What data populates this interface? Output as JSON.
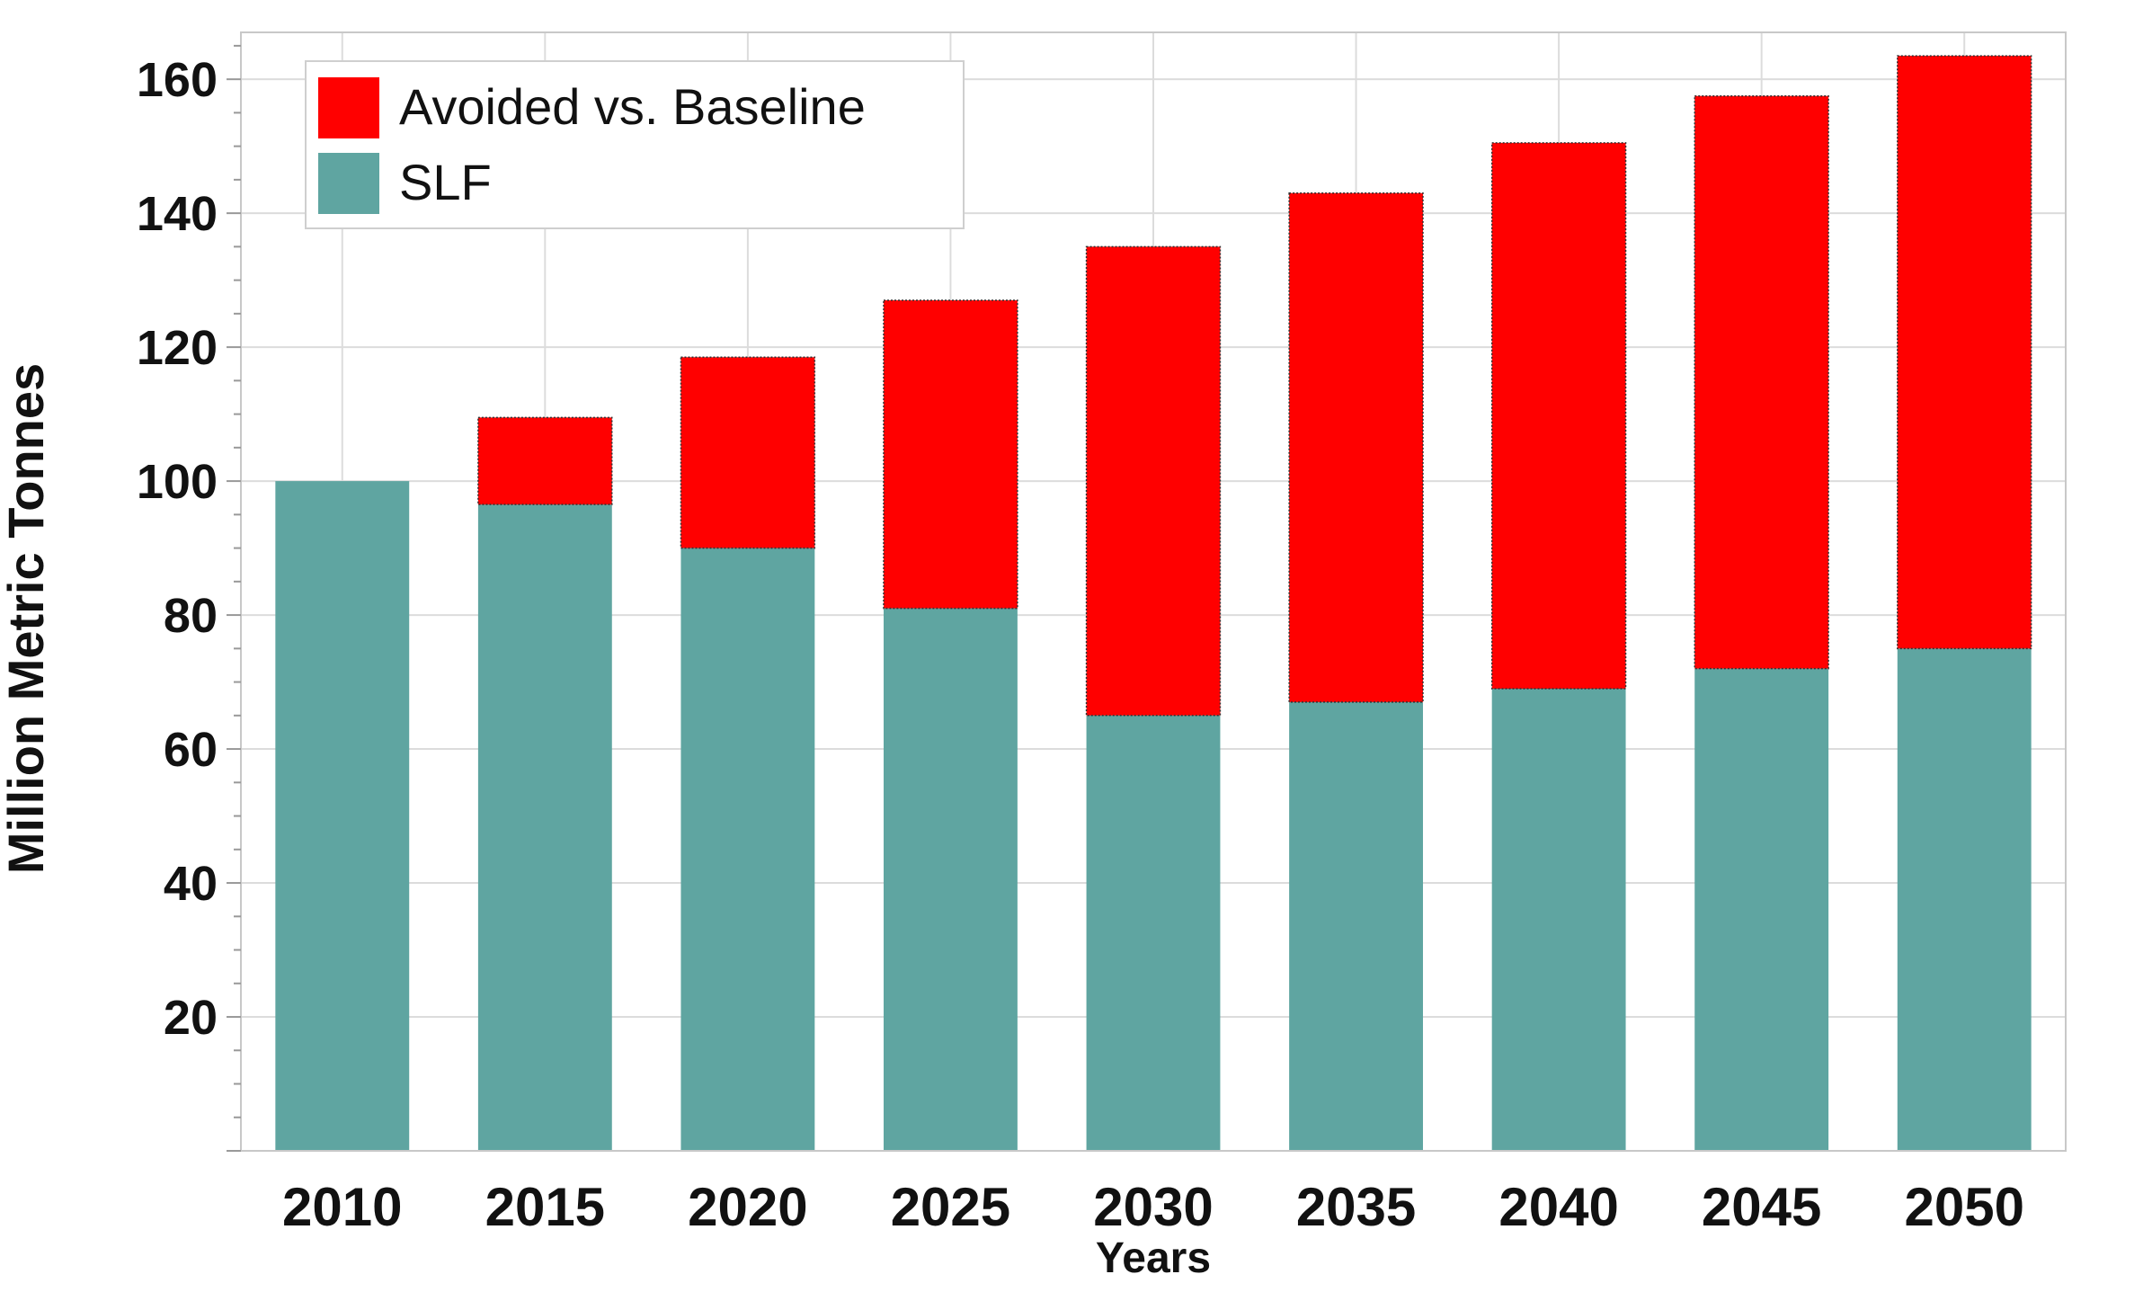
{
  "chart_data": {
    "type": "bar",
    "stacked": true,
    "title": "",
    "xlabel": "Years",
    "ylabel": "Million Metric Tonnes",
    "categories": [
      "2010",
      "2015",
      "2020",
      "2025",
      "2030",
      "2035",
      "2040",
      "2045",
      "2050"
    ],
    "series": [
      {
        "name": "SLF",
        "color": "#5fa5a1",
        "values": [
          100,
          96.5,
          90,
          81,
          65,
          67,
          69,
          72,
          75
        ]
      },
      {
        "name": "Avoided vs. Baseline",
        "color": "#ff0000",
        "values": [
          0,
          13,
          28.5,
          46,
          70,
          76,
          81.5,
          85.5,
          88.5
        ]
      }
    ],
    "legend_order": [
      "Avoided vs. Baseline",
      "SLF"
    ],
    "y_ticks": [
      20,
      40,
      60,
      80,
      100,
      120,
      140,
      160
    ],
    "ylim": [
      0,
      167
    ],
    "grid": true,
    "legend_position": "top-left"
  }
}
